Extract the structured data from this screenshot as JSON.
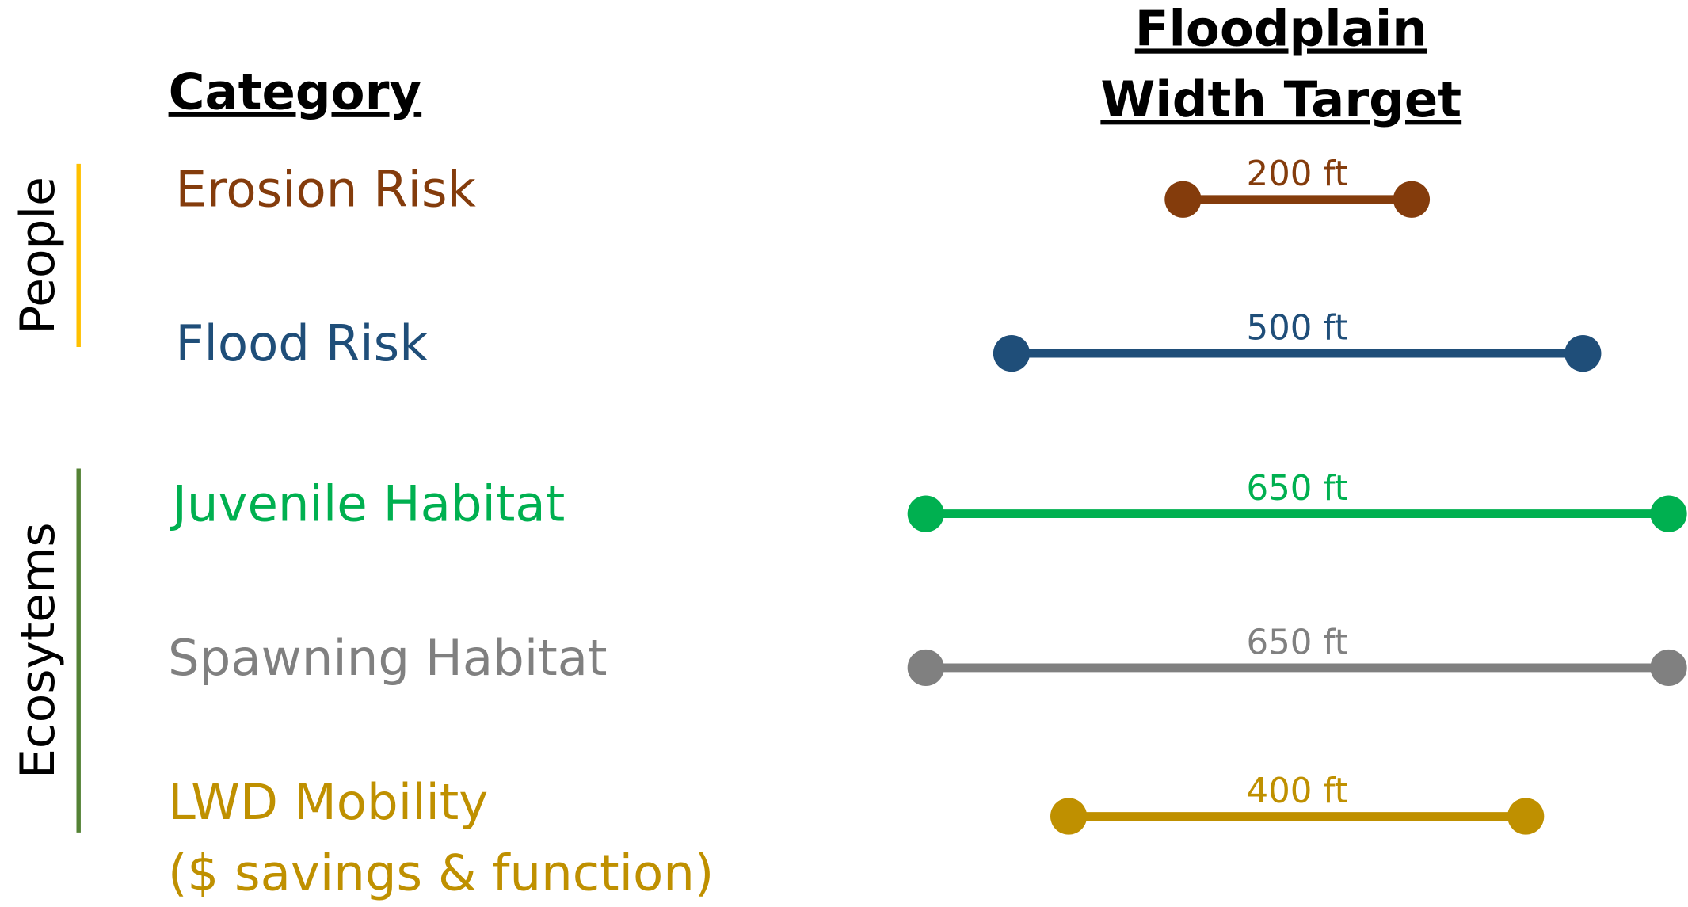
{
  "chart_data": {
    "type": "dumbbell",
    "category_header": "Category",
    "value_header": [
      "Floodplain",
      "Width Target"
    ],
    "categories": [
      "Erosion Risk",
      "Flood Risk",
      "Juvenile Habitat",
      "Spawning Habitat",
      [
        "LWD Mobility",
        "($ savings & function)"
      ]
    ],
    "values": [
      200,
      500,
      650,
      650,
      400
    ],
    "value_labels": [
      "200 ft",
      "500 ft",
      "650 ft",
      "650 ft",
      "400 ft"
    ],
    "colors": [
      "#843c0c",
      "#1f4e79",
      "#00b050",
      "#808080",
      "#bf9000"
    ],
    "groups": [
      {
        "name": "People",
        "color": "#ffc000",
        "members": [
          0,
          1
        ]
      },
      {
        "name": "Ecosytems",
        "color": "#548235",
        "members": [
          2,
          3,
          4
        ]
      }
    ]
  }
}
